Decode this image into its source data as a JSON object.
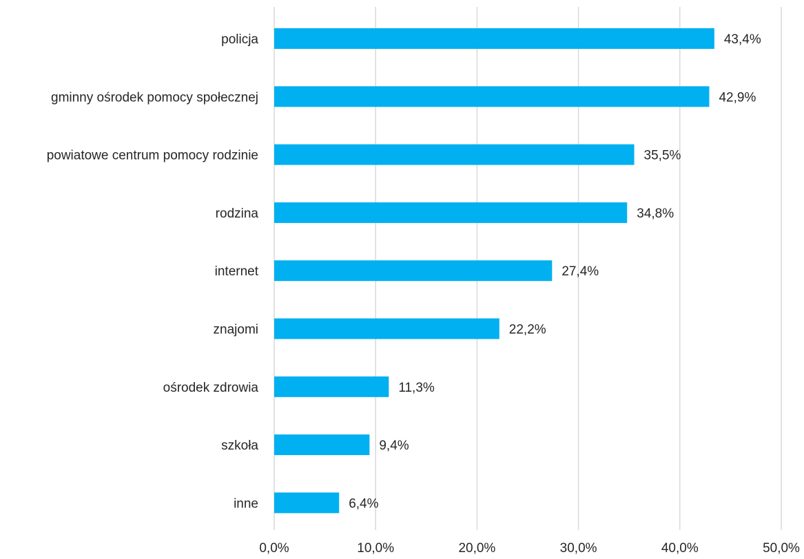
{
  "chart_data": {
    "type": "bar",
    "orientation": "horizontal",
    "categories": [
      "policja",
      "gminny ośrodek pomocy społecznej",
      "powiatowe centrum pomocy rodzinie",
      "rodzina",
      "internet",
      "znajomi",
      "ośrodek zdrowia",
      "szkoła",
      "inne"
    ],
    "values": [
      43.4,
      42.9,
      35.5,
      34.8,
      27.4,
      22.2,
      11.3,
      9.4,
      6.4
    ],
    "value_labels": [
      "43,4%",
      "42,9%",
      "35,5%",
      "34,8%",
      "27,4%",
      "22,2%",
      "11,3%",
      "9,4%",
      "6,4%"
    ],
    "x_ticks": [
      "0,0%",
      "10,0%",
      "20,0%",
      "30,0%",
      "40,0%",
      "50,0%"
    ],
    "xlim": [
      0,
      50
    ],
    "grid": true,
    "bar_color": "#00b0f0",
    "grid_color": "#d9d9d9",
    "title": "",
    "xlabel": "",
    "ylabel": ""
  }
}
